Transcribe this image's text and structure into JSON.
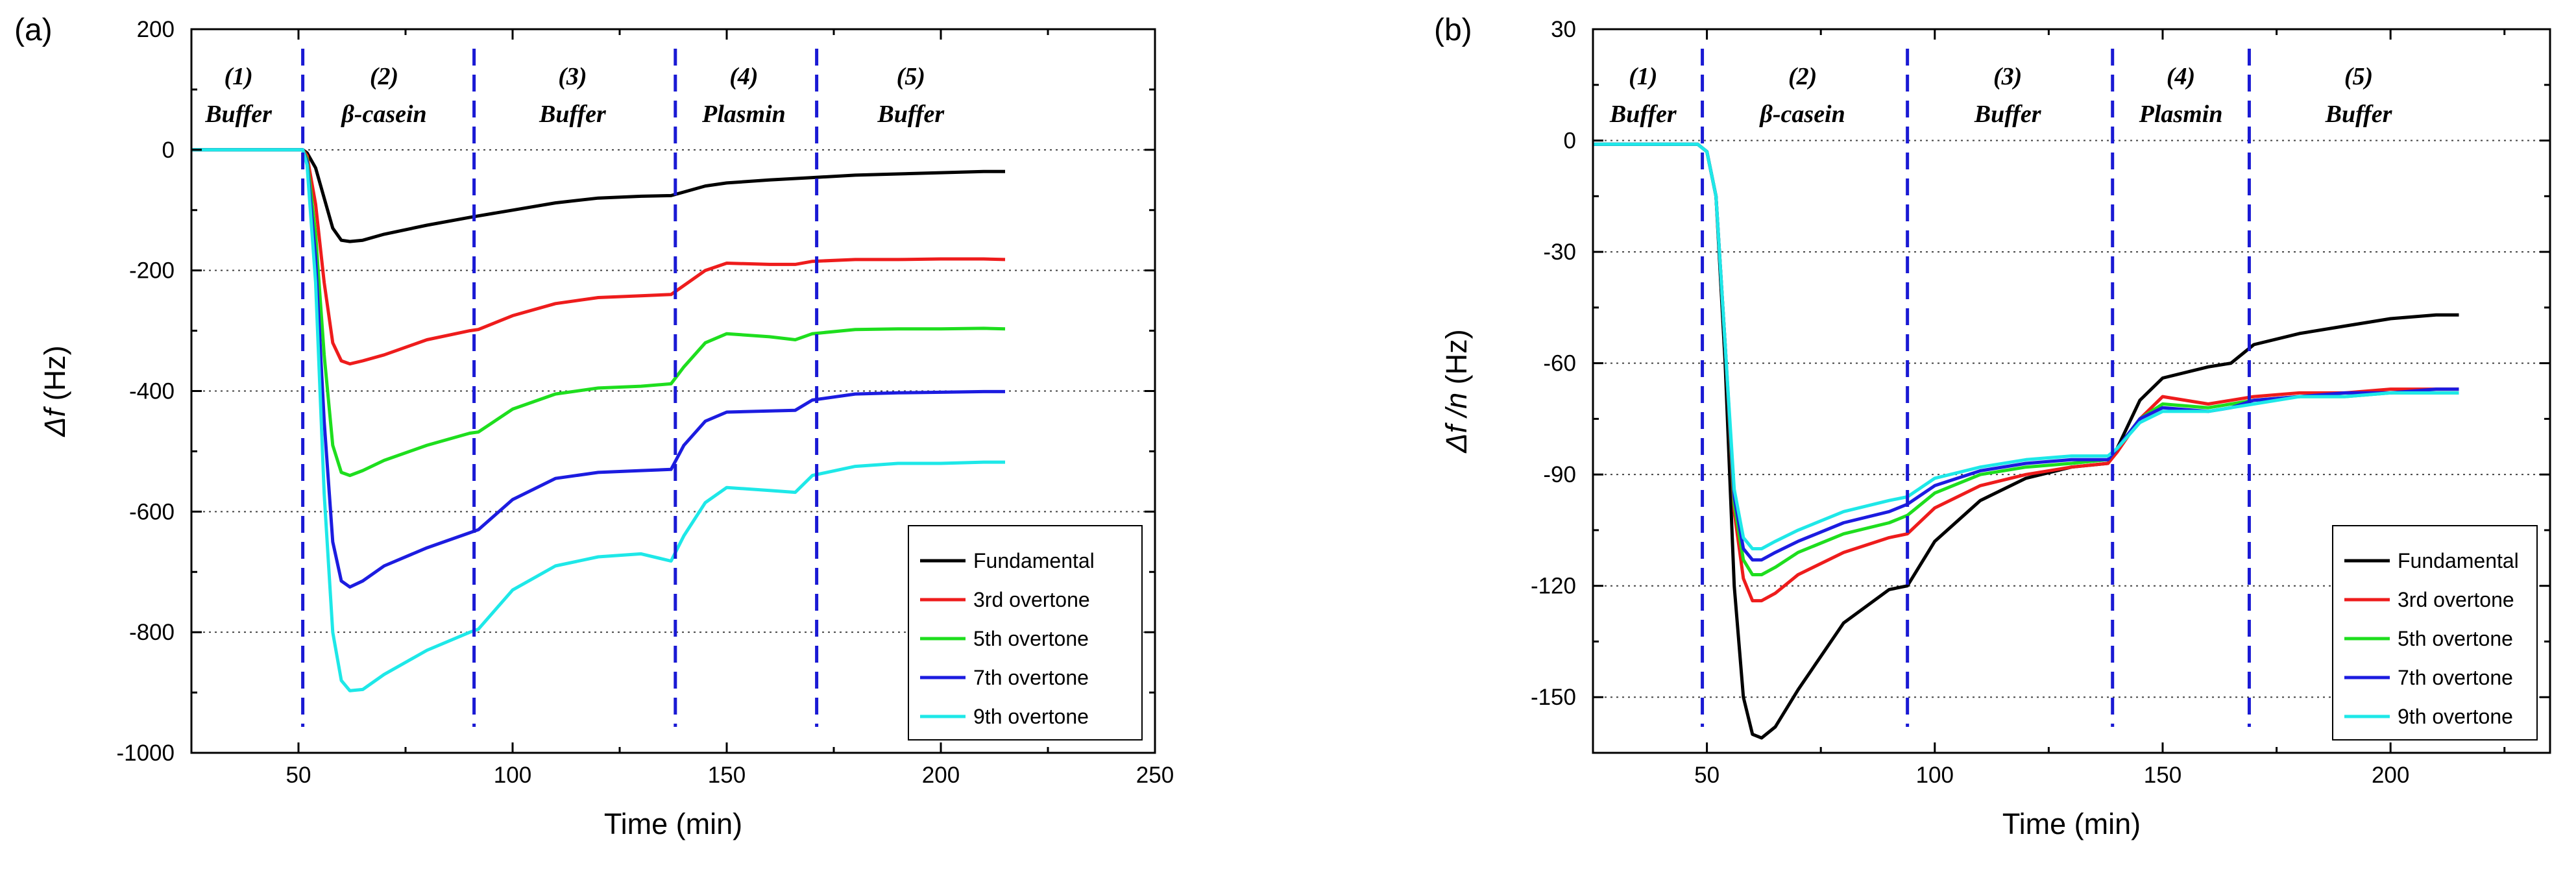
{
  "chart_data": [
    {
      "type": "line",
      "panel_label": "(a)",
      "xlabel": "Time (min)",
      "ylabel": {
        "symbol": "Δf",
        "unit": " (Hz)"
      },
      "xlim": [
        25,
        250
      ],
      "ylim": [
        -1000,
        200
      ],
      "xticks": [
        50,
        100,
        150,
        200,
        250
      ],
      "yticks": [
        200,
        0,
        -200,
        -400,
        -600,
        -800,
        -1000
      ],
      "gridlines_y": [
        0,
        -200,
        -400,
        -600,
        -800
      ],
      "phase_boundaries": [
        51,
        91,
        138,
        171
      ],
      "phases": [
        {
          "num": "(1)",
          "name": "Buffer",
          "x": 36
        },
        {
          "num": "(2)",
          "name": "β-casein",
          "x": 70
        },
        {
          "num": "(3)",
          "name": "Buffer",
          "x": 114
        },
        {
          "num": "(4)",
          "name": "Plasmin",
          "x": 154
        },
        {
          "num": "(5)",
          "name": "Buffer",
          "x": 193
        }
      ],
      "legend": {
        "position": "bottom-right"
      },
      "series": [
        {
          "name": "Fundamental",
          "color": "#000000",
          "x": [
            25,
            50,
            51,
            52,
            54,
            56,
            58,
            60,
            62,
            65,
            70,
            80,
            90,
            100,
            110,
            120,
            130,
            137,
            140,
            145,
            150,
            160,
            170,
            180,
            190,
            200,
            210,
            215
          ],
          "y": [
            0,
            0,
            0,
            -5,
            -30,
            -80,
            -130,
            -150,
            -152,
            -150,
            -140,
            -125,
            -112,
            -100,
            -88,
            -80,
            -77,
            -76,
            -70,
            -60,
            -55,
            -50,
            -46,
            -42,
            -40,
            -38,
            -36,
            -36
          ]
        },
        {
          "name": "3rd overtone",
          "color": "#ee1c1c",
          "x": [
            25,
            50,
            51,
            52,
            54,
            56,
            58,
            60,
            62,
            65,
            70,
            80,
            90,
            92,
            100,
            110,
            120,
            130,
            137,
            140,
            145,
            150,
            160,
            166,
            170,
            180,
            190,
            200,
            210,
            215
          ],
          "y": [
            0,
            0,
            0,
            -10,
            -90,
            -220,
            -320,
            -350,
            -355,
            -350,
            -340,
            -315,
            -300,
            -298,
            -275,
            -255,
            -245,
            -242,
            -240,
            -225,
            -200,
            -188,
            -190,
            -190,
            -185,
            -182,
            -182,
            -181,
            -181,
            -182
          ]
        },
        {
          "name": "5th overtone",
          "color": "#1ede1e",
          "x": [
            25,
            50,
            51,
            52,
            54,
            56,
            58,
            60,
            62,
            65,
            70,
            80,
            90,
            92,
            100,
            110,
            120,
            130,
            137,
            140,
            145,
            150,
            160,
            166,
            170,
            180,
            190,
            200,
            210,
            215
          ],
          "y": [
            0,
            0,
            0,
            -15,
            -140,
            -340,
            -490,
            -535,
            -540,
            -532,
            -515,
            -490,
            -470,
            -468,
            -430,
            -405,
            -395,
            -392,
            -388,
            -360,
            -320,
            -305,
            -310,
            -315,
            -305,
            -298,
            -297,
            -297,
            -296,
            -297
          ]
        },
        {
          "name": "7th overtone",
          "color": "#1c1ce0",
          "x": [
            25,
            50,
            51,
            52,
            54,
            56,
            58,
            60,
            62,
            65,
            70,
            80,
            90,
            92,
            100,
            110,
            120,
            130,
            137,
            140,
            145,
            150,
            160,
            166,
            170,
            180,
            190,
            200,
            210,
            215
          ],
          "y": [
            0,
            0,
            0,
            -20,
            -180,
            -450,
            -650,
            -715,
            -725,
            -715,
            -690,
            -660,
            -635,
            -630,
            -580,
            -545,
            -535,
            -532,
            -530,
            -490,
            -450,
            -435,
            -433,
            -432,
            -415,
            -405,
            -403,
            -402,
            -401,
            -401
          ]
        },
        {
          "name": "9th overtone",
          "color": "#1ee8e8",
          "x": [
            25,
            50,
            51,
            52,
            54,
            56,
            58,
            60,
            62,
            65,
            70,
            80,
            90,
            92,
            100,
            110,
            120,
            130,
            137,
            140,
            145,
            150,
            160,
            166,
            170,
            180,
            190,
            200,
            210,
            215
          ],
          "y": [
            0,
            0,
            0,
            -25,
            -220,
            -570,
            -800,
            -880,
            -897,
            -895,
            -870,
            -830,
            -800,
            -795,
            -730,
            -690,
            -675,
            -670,
            -682,
            -640,
            -585,
            -560,
            -565,
            -568,
            -540,
            -525,
            -520,
            -520,
            -518,
            -518
          ]
        }
      ]
    },
    {
      "type": "line",
      "panel_label": "(b)",
      "xlabel": "Time (min)",
      "ylabel": {
        "symbol": "Δf /n",
        "unit": " (Hz)"
      },
      "xlim": [
        25,
        235
      ],
      "ylim": [
        -165,
        30
      ],
      "xticks": [
        50,
        100,
        150,
        200
      ],
      "yticks": [
        30,
        0,
        -30,
        -60,
        -90,
        -120,
        -150
      ],
      "gridlines_y": [
        0,
        -30,
        -60,
        -90,
        -120,
        -150
      ],
      "phase_boundaries": [
        49,
        94,
        139,
        169
      ],
      "phases": [
        {
          "num": "(1)",
          "name": "Buffer",
          "x": 36
        },
        {
          "num": "(2)",
          "name": "β-casein",
          "x": 71
        },
        {
          "num": "(3)",
          "name": "Buffer",
          "x": 116
        },
        {
          "num": "(4)",
          "name": "Plasmin",
          "x": 154
        },
        {
          "num": "(5)",
          "name": "Buffer",
          "x": 193
        }
      ],
      "legend": {
        "position": "bottom-right"
      },
      "series": [
        {
          "name": "Fundamental",
          "color": "#000000",
          "x": [
            25,
            48,
            50,
            52,
            54,
            56,
            58,
            60,
            62,
            65,
            70,
            80,
            90,
            94,
            100,
            110,
            120,
            130,
            138,
            140,
            145,
            150,
            160,
            165,
            170,
            180,
            190,
            200,
            210,
            215
          ],
          "y": [
            -1,
            -1,
            -3,
            -15,
            -60,
            -120,
            -150,
            -160,
            -161,
            -158,
            -148,
            -130,
            -121,
            -120,
            -108,
            -97,
            -91,
            -88,
            -87,
            -83,
            -70,
            -64,
            -61,
            -60,
            -55,
            -52,
            -50,
            -48,
            -47,
            -47
          ]
        },
        {
          "name": "3rd overtone",
          "color": "#ee1c1c",
          "x": [
            25,
            48,
            50,
            52,
            54,
            56,
            58,
            60,
            62,
            65,
            70,
            80,
            90,
            94,
            100,
            110,
            120,
            130,
            138,
            140,
            145,
            150,
            160,
            165,
            170,
            180,
            190,
            200,
            210,
            215
          ],
          "y": [
            -1,
            -1,
            -3,
            -15,
            -55,
            -100,
            -118,
            -124,
            -124,
            -122,
            -117,
            -111,
            -107,
            -106,
            -99,
            -93,
            -90,
            -88,
            -87,
            -84,
            -75,
            -69,
            -71,
            -70,
            -69,
            -68,
            -68,
            -67,
            -67,
            -67
          ]
        },
        {
          "name": "5th overtone",
          "color": "#1ede1e",
          "x": [
            25,
            48,
            50,
            52,
            54,
            56,
            58,
            60,
            62,
            65,
            70,
            80,
            90,
            94,
            100,
            110,
            120,
            130,
            138,
            140,
            145,
            150,
            160,
            165,
            170,
            180,
            190,
            200,
            210,
            215
          ],
          "y": [
            -1,
            -1,
            -3,
            -15,
            -55,
            -98,
            -113,
            -117,
            -117,
            -115,
            -111,
            -106,
            -103,
            -101,
            -95,
            -90,
            -88,
            -87,
            -86,
            -83,
            -75,
            -71,
            -72,
            -71,
            -70,
            -69,
            -69,
            -68,
            -68,
            -68
          ]
        },
        {
          "name": "7th overtone",
          "color": "#1c1ce0",
          "x": [
            25,
            48,
            50,
            52,
            54,
            56,
            58,
            60,
            62,
            65,
            70,
            80,
            90,
            94,
            100,
            110,
            120,
            130,
            138,
            140,
            145,
            150,
            160,
            165,
            170,
            180,
            190,
            200,
            210,
            215
          ],
          "y": [
            -1,
            -1,
            -3,
            -15,
            -55,
            -96,
            -110,
            -113,
            -113,
            -111,
            -108,
            -103,
            -100,
            -98,
            -93,
            -89,
            -87,
            -86,
            -86,
            -83,
            -75,
            -72,
            -73,
            -72,
            -70,
            -69,
            -68,
            -68,
            -67,
            -67
          ]
        },
        {
          "name": "9th overtone",
          "color": "#1ee8e8",
          "x": [
            25,
            48,
            50,
            52,
            54,
            56,
            58,
            60,
            62,
            65,
            70,
            80,
            90,
            94,
            100,
            110,
            120,
            130,
            138,
            140,
            145,
            150,
            160,
            165,
            170,
            180,
            190,
            200,
            210,
            215
          ],
          "y": [
            -1,
            -1,
            -3,
            -15,
            -55,
            -94,
            -107,
            -110,
            -110,
            -108,
            -105,
            -100,
            -97,
            -96,
            -91,
            -88,
            -86,
            -85,
            -85,
            -83,
            -76,
            -73,
            -73,
            -72,
            -71,
            -69,
            -69,
            -68,
            -68,
            -68
          ]
        }
      ]
    }
  ]
}
